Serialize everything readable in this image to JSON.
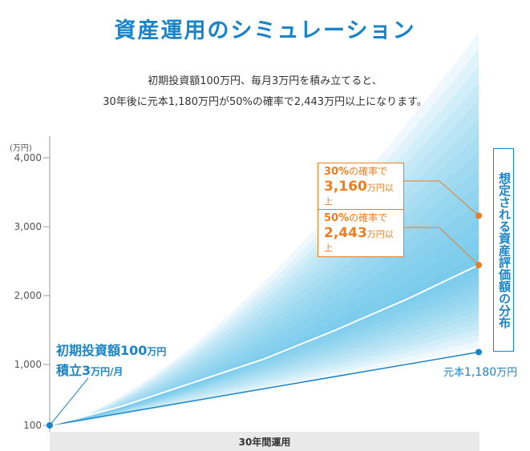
{
  "header": {
    "title": "資産運用のシミュレーション",
    "desc_line1": "初期投資額100万円、毎月3万円を積み立てると、",
    "desc_line2": "30年後に元本1,180万円が50%の確率で2,443万円以上になります。"
  },
  "chart_data": {
    "type": "area",
    "title": "",
    "xlabel": "30年間運用",
    "ylabel": "(万円)",
    "y_ticks": [
      {
        "value": 100,
        "label": "100"
      },
      {
        "value": 1000,
        "label": "1,000"
      },
      {
        "value": 2000,
        "label": "2,000"
      },
      {
        "value": 3000,
        "label": "3,000"
      },
      {
        "value": 4000,
        "label": "4,000"
      }
    ],
    "ylim": [
      100,
      4000
    ],
    "xlim": [
      0,
      30
    ],
    "series": [
      {
        "name": "元本",
        "x": [
          0,
          30
        ],
        "values": [
          100,
          1180
        ],
        "color": "#1a84c8"
      },
      {
        "name": "50%の確率",
        "x": [
          0,
          5,
          10,
          15,
          20,
          25,
          30
        ],
        "values": [
          100,
          380,
          730,
          1080,
          1500,
          1950,
          2443
        ],
        "color": "#ffffff"
      }
    ],
    "markers": [
      {
        "label": "30%の確率で",
        "value": 3160,
        "color": "#ee7d1f"
      },
      {
        "label": "50%の確率で",
        "value": 2443,
        "color": "#ee7d1f"
      },
      {
        "label": "元本",
        "value": 1180,
        "color": "#1a84c8"
      }
    ],
    "distribution_color": "#4db8ee",
    "grid": false,
    "legend": "none"
  },
  "annotations": {
    "a30": {
      "pct": "30%",
      "rest": "の確率で",
      "amount": "3,160",
      "unit": "万円以上"
    },
    "a50": {
      "pct": "50%",
      "rest": "の確率で",
      "amount": "2,443",
      "unit": "万円以上"
    },
    "distribution_label": "想定される資産評価額の分布",
    "initial_line1_pre": "初期投資額",
    "initial_line1_num": "100",
    "initial_line1_unit": "万円",
    "initial_line2_pre": "積立",
    "initial_line2_num": "3",
    "initial_line2_unit": "万円/月",
    "principal_label": "元本",
    "principal_amount": "1,180",
    "principal_unit": "万円"
  }
}
